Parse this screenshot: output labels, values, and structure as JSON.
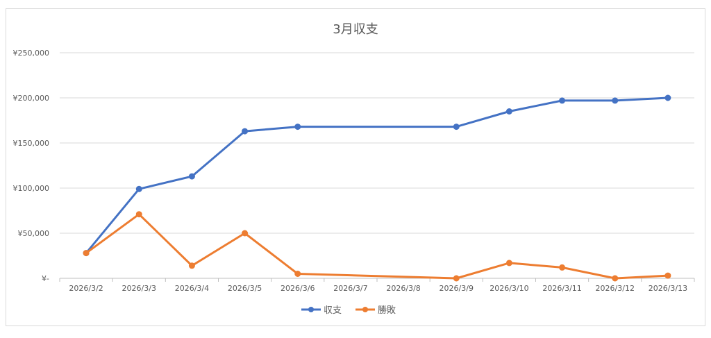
{
  "chart_data": {
    "type": "line",
    "title": "3月収支",
    "xlabel": "",
    "ylabel": "",
    "ylim": [
      0,
      250000
    ],
    "y_ticks": [
      "¥-",
      "¥50,000",
      "¥100,000",
      "¥150,000",
      "¥200,000",
      "¥250,000"
    ],
    "y_tick_values": [
      0,
      50000,
      100000,
      150000,
      200000,
      250000
    ],
    "grid": "horizontal",
    "legend_placement": "bottom-center",
    "categories": [
      "2026/3/2",
      "2026/3/3",
      "2026/3/4",
      "2026/3/5",
      "2026/3/6",
      "2026/3/7",
      "2026/3/8",
      "2026/3/9",
      "2026/3/10",
      "2026/3/11",
      "2026/3/12",
      "2026/3/13"
    ],
    "series": [
      {
        "name": "収支",
        "color": "#4472C4",
        "values": [
          28000,
          99000,
          113000,
          163000,
          168000,
          null,
          null,
          168000,
          185000,
          197000,
          197000,
          200000
        ]
      },
      {
        "name": "勝敗",
        "color": "#ED7D31",
        "values": [
          28000,
          71000,
          14000,
          50000,
          5000,
          null,
          null,
          0,
          17000,
          12000,
          0,
          3000
        ]
      }
    ]
  }
}
